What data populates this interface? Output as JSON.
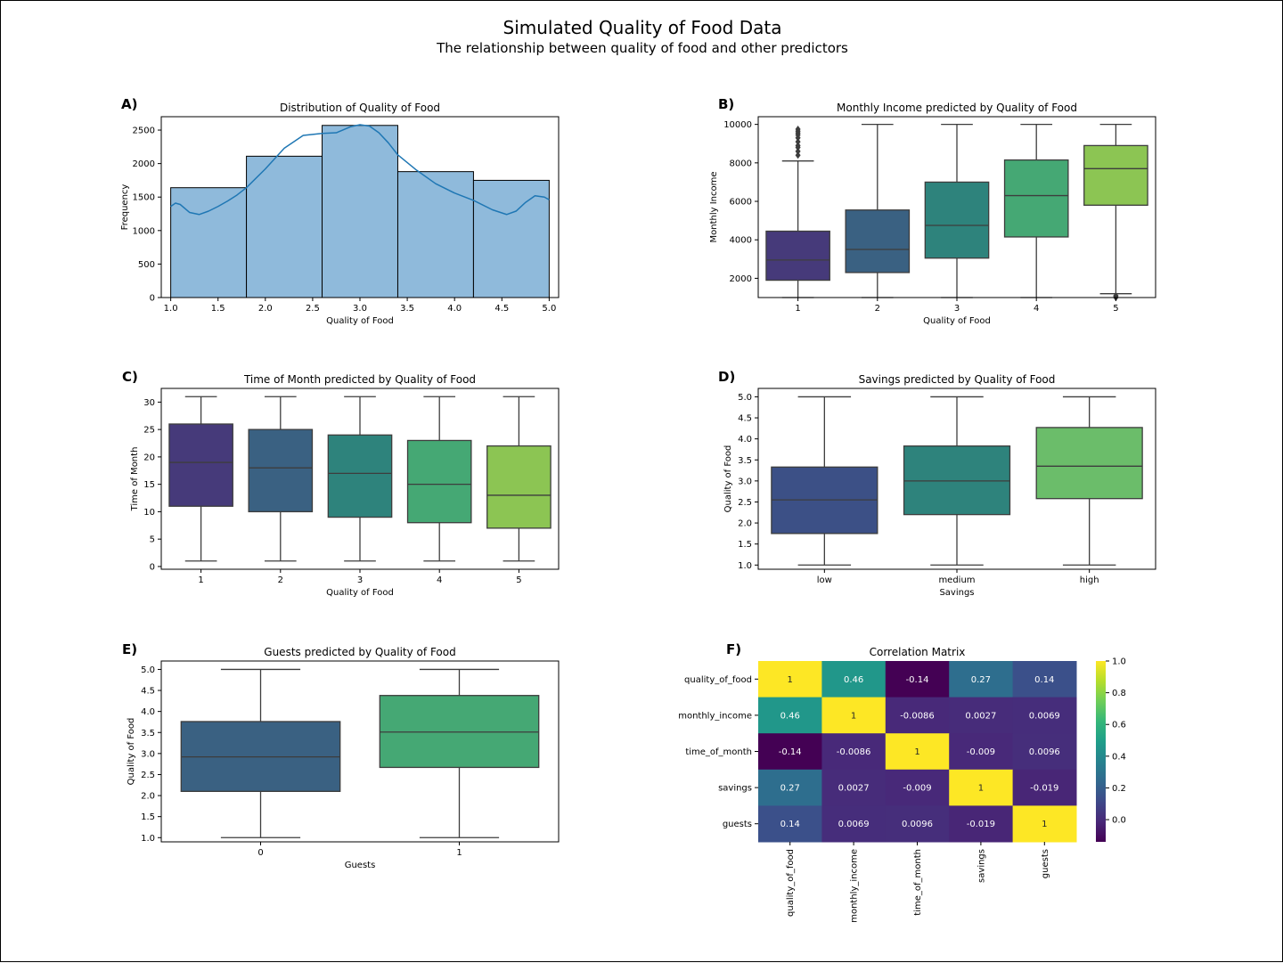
{
  "figure": {
    "title": "Simulated Quality of Food Data",
    "subtitle": "The relationship between quality of food and other predictors"
  },
  "chart_data": [
    {
      "id": "A",
      "panel_label": "A)",
      "type": "bar",
      "subtype": "histogram",
      "title": "Distribution of Quality of Food",
      "xlabel": "Quality of Food",
      "ylabel": "Frequency",
      "xlim": [
        0.9,
        5.1
      ],
      "ylim": [
        0,
        2700
      ],
      "xticks": [
        1.0,
        1.5,
        2.0,
        2.5,
        3.0,
        3.5,
        4.0,
        4.5,
        5.0
      ],
      "xtick_labels": [
        "1.0",
        "1.5",
        "2.0",
        "2.5",
        "3.0",
        "3.5",
        "4.0",
        "4.5",
        "5.0"
      ],
      "yticks": [
        0,
        500,
        1000,
        1500,
        2000,
        2500
      ],
      "ytick_labels": [
        "0",
        "500",
        "1000",
        "1500",
        "2000",
        "2500"
      ],
      "bins": [
        {
          "x0": 1.0,
          "x1": 1.8,
          "count": 1640
        },
        {
          "x0": 1.8,
          "x1": 2.6,
          "count": 2110
        },
        {
          "x0": 2.6,
          "x1": 3.4,
          "count": 2570
        },
        {
          "x0": 3.4,
          "x1": 4.2,
          "count": 1880
        },
        {
          "x0": 4.2,
          "x1": 5.0,
          "count": 1750
        }
      ],
      "kde": {
        "x": [
          1.0,
          1.05,
          1.1,
          1.2,
          1.3,
          1.4,
          1.5,
          1.6,
          1.7,
          1.8,
          2.0,
          2.2,
          2.4,
          2.6,
          2.75,
          2.9,
          3.0,
          3.1,
          3.2,
          3.3,
          3.4,
          3.6,
          3.8,
          4.0,
          4.2,
          4.4,
          4.55,
          4.65,
          4.75,
          4.85,
          4.95,
          5.0
        ],
        "y": [
          1360,
          1410,
          1390,
          1270,
          1240,
          1290,
          1360,
          1440,
          1530,
          1640,
          1920,
          2230,
          2420,
          2450,
          2460,
          2550,
          2580,
          2560,
          2460,
          2310,
          2130,
          1900,
          1700,
          1560,
          1450,
          1310,
          1240,
          1290,
          1420,
          1520,
          1500,
          1460
        ]
      },
      "colors": {
        "bar": "#8fbadb",
        "edge": "#000000",
        "kde": "#1f77b4"
      }
    },
    {
      "id": "B",
      "panel_label": "B)",
      "type": "boxplot",
      "title": "Monthly Income predicted by Quality of Food",
      "xlabel": "Quality of Food",
      "ylabel": "Monthly Income",
      "categories": [
        "1",
        "2",
        "3",
        "4",
        "5"
      ],
      "ylim": [
        1000,
        10400
      ],
      "yticks": [
        2000,
        4000,
        6000,
        8000,
        10000
      ],
      "ytick_labels": [
        "2000",
        "4000",
        "6000",
        "8000",
        "10000"
      ],
      "boxes": [
        {
          "min": 1000,
          "q1": 1900,
          "median": 2950,
          "q3": 4450,
          "max": 8100,
          "outliers": [
            8400,
            8600,
            8800,
            8900,
            9100,
            9300,
            9450,
            9550,
            9650,
            9750
          ]
        },
        {
          "min": 1000,
          "q1": 2300,
          "median": 3500,
          "q3": 5550,
          "max": 10000,
          "outliers": []
        },
        {
          "min": 1000,
          "q1": 3050,
          "median": 4750,
          "q3": 7000,
          "max": 10000,
          "outliers": []
        },
        {
          "min": 1000,
          "q1": 4150,
          "median": 6300,
          "q3": 8150,
          "max": 10000,
          "outliers": []
        },
        {
          "min": 1200,
          "q1": 5800,
          "median": 7700,
          "q3": 8900,
          "max": 10000,
          "outliers": [
            1000,
            1050,
            1100
          ]
        }
      ],
      "colors": [
        "#463a7a",
        "#3a6182",
        "#2e837c",
        "#45a874",
        "#8cc553"
      ]
    },
    {
      "id": "C",
      "panel_label": "C)",
      "type": "boxplot",
      "title": "Time of Month predicted by Quality of Food",
      "xlabel": "Quality of Food",
      "ylabel": "Time of Month",
      "categories": [
        "1",
        "2",
        "3",
        "4",
        "5"
      ],
      "ylim": [
        -0.5,
        32.5
      ],
      "yticks": [
        0,
        5,
        10,
        15,
        20,
        25,
        30
      ],
      "ytick_labels": [
        "0",
        "5",
        "10",
        "15",
        "20",
        "25",
        "30"
      ],
      "boxes": [
        {
          "min": 1,
          "q1": 11,
          "median": 19,
          "q3": 26,
          "max": 31,
          "outliers": []
        },
        {
          "min": 1,
          "q1": 10,
          "median": 18,
          "q3": 25,
          "max": 31,
          "outliers": []
        },
        {
          "min": 1,
          "q1": 9,
          "median": 17,
          "q3": 24,
          "max": 31,
          "outliers": []
        },
        {
          "min": 1,
          "q1": 8,
          "median": 15,
          "q3": 23,
          "max": 31,
          "outliers": []
        },
        {
          "min": 1,
          "q1": 7,
          "median": 13,
          "q3": 22,
          "max": 31,
          "outliers": []
        }
      ],
      "colors": [
        "#463a7a",
        "#3a6182",
        "#2e837c",
        "#45a874",
        "#8cc553"
      ]
    },
    {
      "id": "D",
      "panel_label": "D)",
      "type": "boxplot",
      "title": "Savings predicted by Quality of Food",
      "xlabel": "Savings",
      "ylabel": "Quality of Food",
      "categories": [
        "low",
        "medium",
        "high"
      ],
      "ylim": [
        0.9,
        5.2
      ],
      "yticks": [
        1.0,
        1.5,
        2.0,
        2.5,
        3.0,
        3.5,
        4.0,
        4.5,
        5.0
      ],
      "ytick_labels": [
        "1.0",
        "1.5",
        "2.0",
        "2.5",
        "3.0",
        "3.5",
        "4.0",
        "4.5",
        "5.0"
      ],
      "boxes": [
        {
          "min": 1.0,
          "q1": 1.75,
          "median": 2.55,
          "q3": 3.33,
          "max": 5.0,
          "outliers": []
        },
        {
          "min": 1.0,
          "q1": 2.2,
          "median": 3.0,
          "q3": 3.83,
          "max": 5.0,
          "outliers": []
        },
        {
          "min": 1.0,
          "q1": 2.58,
          "median": 3.35,
          "q3": 4.27,
          "max": 5.0,
          "outliers": []
        }
      ],
      "colors": [
        "#3c5086",
        "#2e837c",
        "#6bbd6a"
      ]
    },
    {
      "id": "E",
      "panel_label": "E)",
      "type": "boxplot",
      "title": "Guests predicted by Quality of Food",
      "xlabel": "Guests",
      "ylabel": "Quality of Food",
      "categories": [
        "0",
        "1"
      ],
      "ylim": [
        0.9,
        5.2
      ],
      "yticks": [
        1.0,
        1.5,
        2.0,
        2.5,
        3.0,
        3.5,
        4.0,
        4.5,
        5.0
      ],
      "ytick_labels": [
        "1.0",
        "1.5",
        "2.0",
        "2.5",
        "3.0",
        "3.5",
        "4.0",
        "4.5",
        "5.0"
      ],
      "boxes": [
        {
          "min": 1.0,
          "q1": 2.1,
          "median": 2.92,
          "q3": 3.76,
          "max": 5.0,
          "outliers": []
        },
        {
          "min": 1.0,
          "q1": 2.67,
          "median": 3.51,
          "q3": 4.38,
          "max": 5.0,
          "outliers": []
        }
      ],
      "colors": [
        "#3a6182",
        "#45a874"
      ]
    },
    {
      "id": "F",
      "panel_label": "F)",
      "type": "heatmap",
      "title": "Correlation Matrix",
      "labels": [
        "quality_of_food",
        "monthly_income",
        "time_of_month",
        "savings",
        "guests"
      ],
      "matrix": [
        [
          1,
          0.46,
          -0.14,
          0.27,
          0.14
        ],
        [
          0.46,
          1,
          -0.0086,
          0.0027,
          0.0069
        ],
        [
          -0.14,
          -0.0086,
          1,
          -0.009,
          0.0096
        ],
        [
          0.27,
          0.0027,
          -0.009,
          1,
          -0.019
        ],
        [
          0.14,
          0.0069,
          0.0096,
          -0.019,
          1
        ]
      ],
      "annotations": [
        [
          "1",
          "0.46",
          "-0.14",
          "0.27",
          "0.14"
        ],
        [
          "0.46",
          "1",
          "-0.0086",
          "0.0027",
          "0.0069"
        ],
        [
          "-0.14",
          "-0.0086",
          "1",
          "-0.009",
          "0.0096"
        ],
        [
          "0.27",
          "0.0027",
          "-0.009",
          "1",
          "-0.019"
        ],
        [
          "0.14",
          "0.0069",
          "0.0096",
          "-0.019",
          "1"
        ]
      ],
      "colorbar": {
        "vmin": -0.14,
        "vmax": 1.0,
        "ticks": [
          0.0,
          0.2,
          0.4,
          0.6,
          0.8,
          1.0
        ],
        "tick_labels": [
          "0.0",
          "0.2",
          "0.4",
          "0.6",
          "0.8",
          "1.0"
        ],
        "colormap": "viridis"
      }
    }
  ]
}
